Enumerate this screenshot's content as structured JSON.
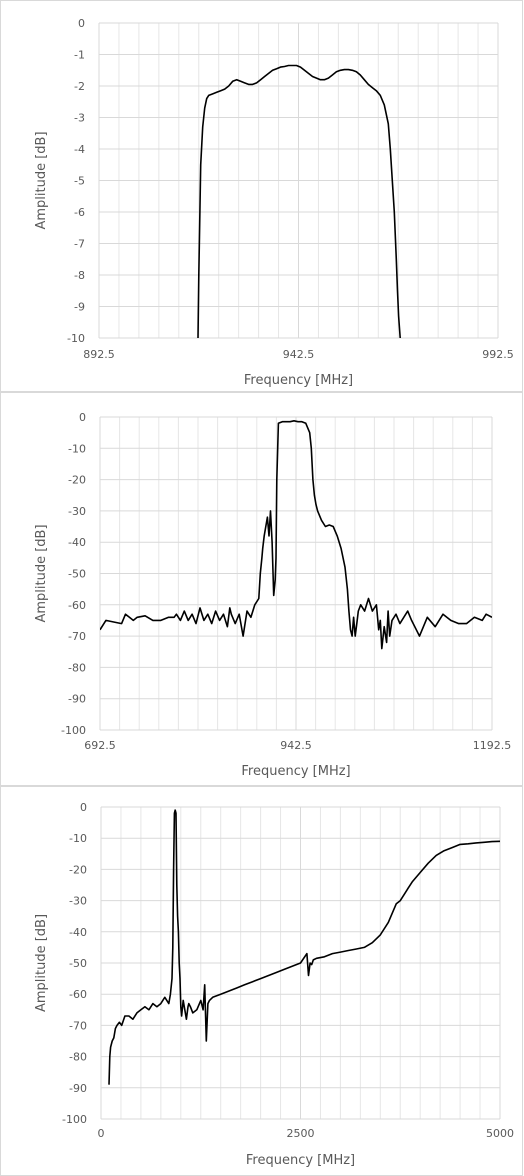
{
  "chart_data": [
    {
      "type": "line",
      "title": "",
      "xlabel": "Frequency [MHz]",
      "ylabel": "Amplitude [dB]",
      "xlim": [
        892.5,
        992.5
      ],
      "ylim": [
        -10,
        0
      ],
      "x_ticks": [
        892.5,
        942.5,
        992.5
      ],
      "x_tick_labels": [
        "892.5",
        "942.5",
        "992.5"
      ],
      "y_ticks": [
        0,
        -1,
        -2,
        -3,
        -4,
        -5,
        -6,
        -7,
        -8,
        -9,
        -10
      ],
      "y_tick_labels": [
        "0",
        "-1",
        "-2",
        "-3",
        "-4",
        "-5",
        "-6",
        "-7",
        "-8",
        "-9",
        "-10"
      ],
      "x_minor_grid_step": 5,
      "grid": true,
      "legend": "none",
      "line_color": "#000000",
      "series": [
        {
          "x": [
            917.3,
            917.5,
            917.8,
            918.0,
            918.5,
            919.0,
            919.5,
            920.0,
            921.0,
            922.0,
            923.0,
            924.0,
            925.0,
            926.0,
            927.0,
            928.0,
            929.0,
            930.0,
            931.0,
            932.0,
            933.0,
            934.0,
            935.0,
            936.0,
            937.0,
            938.0,
            939.0,
            940.0,
            941.0,
            942.0,
            943.0,
            944.0,
            945.0,
            946.0,
            947.0,
            948.0,
            949.0,
            950.0,
            951.0,
            952.0,
            953.0,
            954.0,
            955.0,
            956.0,
            957.0,
            958.0,
            959.0,
            960.0,
            961.0,
            962.0,
            963.0,
            964.0,
            965.0,
            965.5,
            966.0,
            966.5,
            967.0,
            967.3,
            967.6,
            968.0
          ],
          "y": [
            -10.0,
            -8.0,
            -6.0,
            -4.5,
            -3.3,
            -2.7,
            -2.4,
            -2.3,
            -2.25,
            -2.2,
            -2.15,
            -2.1,
            -2.0,
            -1.85,
            -1.8,
            -1.85,
            -1.9,
            -1.95,
            -1.95,
            -1.9,
            -1.8,
            -1.7,
            -1.6,
            -1.5,
            -1.45,
            -1.4,
            -1.38,
            -1.35,
            -1.35,
            -1.35,
            -1.4,
            -1.5,
            -1.6,
            -1.7,
            -1.75,
            -1.8,
            -1.8,
            -1.75,
            -1.65,
            -1.55,
            -1.5,
            -1.48,
            -1.48,
            -1.5,
            -1.55,
            -1.65,
            -1.8,
            -1.95,
            -2.05,
            -2.15,
            -2.3,
            -2.6,
            -3.2,
            -4.0,
            -5.0,
            -6.0,
            -7.5,
            -8.5,
            -9.3,
            -10.0
          ]
        }
      ]
    },
    {
      "type": "line",
      "title": "",
      "xlabel": "Frequency [MHz]",
      "ylabel": "Amplitude [dB]",
      "xlim": [
        692.5,
        1192.5
      ],
      "ylim": [
        -100,
        0
      ],
      "x_ticks": [
        692.5,
        942.5,
        1192.5
      ],
      "x_tick_labels": [
        "692.5",
        "942.5",
        "1192.5"
      ],
      "y_ticks": [
        0,
        -10,
        -20,
        -30,
        -40,
        -50,
        -60,
        -70,
        -80,
        -90,
        -100
      ],
      "y_tick_labels": [
        "0",
        "-10",
        "-20",
        "-30",
        "-40",
        "-50",
        "-60",
        "-70",
        "-80",
        "-90",
        "-100"
      ],
      "x_minor_grid_step": 25,
      "grid": true,
      "legend": "none",
      "line_color": "#000000",
      "series": [
        {
          "x": [
            692.5,
            700,
            710,
            720,
            725,
            730,
            735,
            740,
            750,
            760,
            770,
            780,
            787,
            790,
            795,
            800,
            805,
            810,
            815,
            820,
            825,
            830,
            835,
            840,
            845,
            850,
            855,
            858,
            860,
            865,
            870,
            875,
            880,
            885,
            890,
            895,
            897,
            899,
            900,
            902,
            904,
            906,
            908,
            910,
            912,
            914,
            916,
            917,
            918,
            920,
            925,
            930,
            935,
            940,
            945,
            950,
            955,
            960,
            962,
            964,
            966,
            968,
            970,
            975,
            980,
            985,
            990,
            995,
            1000,
            1005,
            1008,
            1010,
            1012,
            1014,
            1016,
            1018,
            1020,
            1022,
            1025,
            1030,
            1035,
            1040,
            1045,
            1048,
            1050,
            1052,
            1055,
            1058,
            1060,
            1062,
            1065,
            1070,
            1075,
            1080,
            1085,
            1090,
            1100,
            1110,
            1120,
            1130,
            1140,
            1150,
            1160,
            1170,
            1180,
            1185,
            1192.5
          ],
          "y": [
            -68,
            -65,
            -65.5,
            -66,
            -63,
            -64,
            -65,
            -64,
            -63.5,
            -65,
            -65,
            -64,
            -64,
            -63,
            -65,
            -62,
            -65,
            -63,
            -66,
            -61,
            -65,
            -63,
            -66,
            -62,
            -65,
            -63,
            -67,
            -61,
            -63,
            -66,
            -63,
            -70,
            -62,
            -64,
            -60,
            -58,
            -50,
            -45,
            -42,
            -38,
            -35,
            -32,
            -38,
            -30,
            -40,
            -57,
            -52,
            -45,
            -20,
            -2,
            -1.5,
            -1.5,
            -1.5,
            -1.2,
            -1.5,
            -1.5,
            -2,
            -5,
            -10,
            -20,
            -25,
            -28,
            -30,
            -33,
            -35,
            -34.5,
            -35,
            -38,
            -42,
            -48,
            -55,
            -62,
            -68,
            -70,
            -64,
            -70,
            -66,
            -62,
            -60,
            -62,
            -58,
            -62,
            -60,
            -68,
            -65,
            -74,
            -67,
            -72,
            -62,
            -70,
            -65,
            -63,
            -66,
            -64,
            -62,
            -65,
            -70,
            -64,
            -67,
            -63,
            -65,
            -66,
            -66,
            -64,
            -65,
            -63,
            -64
          ]
        }
      ]
    },
    {
      "type": "line",
      "title": "",
      "xlabel": "Frequency [MHz]",
      "ylabel": "Amplitude [dB]",
      "xlim": [
        0,
        5000
      ],
      "ylim": [
        -100,
        0
      ],
      "x_ticks": [
        0,
        2500,
        5000
      ],
      "x_tick_labels": [
        "0",
        "2500",
        "5000"
      ],
      "y_ticks": [
        0,
        -10,
        -20,
        -30,
        -40,
        -50,
        -60,
        -70,
        -80,
        -90,
        -100
      ],
      "y_tick_labels": [
        "0",
        "-10",
        "-20",
        "-30",
        "-40",
        "-50",
        "-60",
        "-70",
        "-80",
        "-90",
        "-100"
      ],
      "x_minor_grid_step": 250,
      "grid": true,
      "legend": "none",
      "line_color": "#000000",
      "series": [
        {
          "x": [
            100,
            110,
            120,
            140,
            160,
            180,
            200,
            230,
            260,
            300,
            350,
            400,
            450,
            500,
            550,
            600,
            650,
            700,
            750,
            800,
            850,
            870,
            890,
            900,
            910,
            920,
            930,
            940,
            950,
            960,
            970,
            980,
            990,
            1000,
            1010,
            1030,
            1050,
            1070,
            1090,
            1100,
            1120,
            1150,
            1200,
            1250,
            1280,
            1300,
            1320,
            1340,
            1360,
            1400,
            1500,
            1600,
            1700,
            1800,
            1900,
            2000,
            2100,
            2200,
            2300,
            2400,
            2500,
            2580,
            2600,
            2620,
            2640,
            2660,
            2700,
            2800,
            2900,
            3000,
            3100,
            3200,
            3300,
            3400,
            3500,
            3600,
            3650,
            3700,
            3750,
            3800,
            3850,
            3900,
            4000,
            4100,
            4200,
            4300,
            4400,
            4500,
            4600,
            4700,
            4800,
            4900,
            5000
          ],
          "y": [
            -89,
            -80,
            -77,
            -75,
            -74,
            -71,
            -70,
            -69,
            -70,
            -67,
            -67,
            -68,
            -66,
            -65,
            -64,
            -65,
            -63,
            -64,
            -63,
            -61,
            -63,
            -60,
            -55,
            -45,
            -20,
            -2,
            -1,
            -2,
            -25,
            -35,
            -40,
            -50,
            -55,
            -64,
            -67,
            -62,
            -65,
            -68,
            -64,
            -63,
            -64,
            -66,
            -65,
            -62,
            -65,
            -57,
            -75,
            -63,
            -62,
            -61,
            -60,
            -59,
            -58,
            -57,
            -56,
            -55,
            -54,
            -53,
            -52,
            -51,
            -50,
            -47,
            -54,
            -50,
            -50.5,
            -49,
            -48.5,
            -48,
            -47,
            -46.5,
            -46,
            -45.5,
            -45,
            -43.5,
            -41,
            -37,
            -34,
            -31,
            -30,
            -28,
            -26,
            -24,
            -21,
            -18,
            -15.5,
            -14,
            -13,
            -12,
            -11.8,
            -11.5,
            -11.3,
            -11.1,
            -11
          ]
        }
      ]
    }
  ]
}
